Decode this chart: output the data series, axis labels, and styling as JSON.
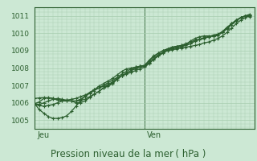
{
  "xlabel": "Pression niveau de la mer ( hPa )",
  "xlim": [
    0,
    48
  ],
  "ylim": [
    1004.5,
    1011.5
  ],
  "yticks": [
    1005,
    1006,
    1007,
    1008,
    1009,
    1010,
    1011
  ],
  "bg_color": "#cce8d4",
  "grid_color": "#a8cdb0",
  "line_color": "#2d6030",
  "vline_x": 24,
  "day_labels": [
    [
      "Jeu",
      0.5
    ],
    [
      "Ven",
      24.5
    ]
  ],
  "series": [
    [
      0,
      1005.9,
      1,
      1005.85,
      2,
      1005.8,
      3,
      1005.85,
      4,
      1005.9,
      5,
      1006.0,
      6,
      1006.1,
      7,
      1006.15,
      8,
      1006.2,
      9,
      1006.25,
      10,
      1006.35,
      11,
      1006.45,
      12,
      1006.55,
      13,
      1006.7,
      14,
      1006.85,
      15,
      1007.0,
      16,
      1007.15,
      17,
      1007.3,
      18,
      1007.45,
      19,
      1007.65,
      20,
      1007.8,
      21,
      1007.95,
      22,
      1008.05,
      23,
      1008.1,
      24,
      1008.15,
      25,
      1008.3,
      26,
      1008.5,
      27,
      1008.7,
      28,
      1008.85,
      29,
      1009.0,
      30,
      1009.05,
      31,
      1009.1,
      32,
      1009.15,
      33,
      1009.2,
      34,
      1009.25,
      35,
      1009.3,
      36,
      1009.35,
      37,
      1009.45,
      38,
      1009.5,
      39,
      1009.6,
      40,
      1009.7,
      41,
      1009.85,
      42,
      1010.05,
      43,
      1010.3,
      44,
      1010.55,
      45,
      1010.75,
      46,
      1010.9,
      47,
      1011.0
    ],
    [
      0,
      1006.25,
      1,
      1006.28,
      2,
      1006.3,
      3,
      1006.28,
      4,
      1006.25,
      5,
      1006.2,
      6,
      1006.15,
      7,
      1006.12,
      8,
      1006.1,
      9,
      1006.1,
      10,
      1006.15,
      11,
      1006.2,
      12,
      1006.35,
      13,
      1006.5,
      14,
      1006.65,
      15,
      1006.85,
      16,
      1007.0,
      17,
      1007.15,
      18,
      1007.35,
      19,
      1007.55,
      20,
      1007.7,
      21,
      1007.85,
      22,
      1007.95,
      23,
      1008.05,
      24,
      1008.1,
      25,
      1008.3,
      26,
      1008.55,
      27,
      1008.75,
      28,
      1008.9,
      29,
      1009.05,
      30,
      1009.15,
      31,
      1009.2,
      32,
      1009.25,
      33,
      1009.3,
      34,
      1009.4,
      35,
      1009.55,
      36,
      1009.65,
      37,
      1009.75,
      38,
      1009.8,
      39,
      1009.85,
      40,
      1009.9,
      41,
      1010.05,
      42,
      1010.3,
      43,
      1010.55,
      44,
      1010.75,
      45,
      1010.9,
      46,
      1011.0,
      47,
      1011.05
    ],
    [
      0,
      1005.95,
      1,
      1005.9,
      2,
      1006.0,
      3,
      1006.1,
      4,
      1006.2,
      5,
      1006.25,
      6,
      1006.2,
      7,
      1006.15,
      8,
      1006.1,
      9,
      1006.0,
      10,
      1006.0,
      11,
      1006.1,
      12,
      1006.3,
      13,
      1006.5,
      14,
      1006.65,
      15,
      1006.85,
      16,
      1006.95,
      17,
      1007.1,
      18,
      1007.35,
      19,
      1007.55,
      20,
      1007.7,
      21,
      1007.85,
      22,
      1008.0,
      23,
      1008.1,
      24,
      1008.15,
      25,
      1008.45,
      26,
      1008.7,
      27,
      1008.85,
      28,
      1009.0,
      29,
      1009.1,
      30,
      1009.2,
      31,
      1009.25,
      32,
      1009.3,
      33,
      1009.35,
      34,
      1009.4,
      35,
      1009.55,
      36,
      1009.65,
      37,
      1009.7,
      38,
      1009.8,
      39,
      1009.9,
      40,
      1009.95,
      41,
      1010.1,
      42,
      1010.35,
      43,
      1010.55,
      44,
      1010.75,
      45,
      1010.9,
      46,
      1011.0,
      47,
      1011.1
    ],
    [
      0,
      1005.95,
      1,
      1005.6,
      2,
      1005.4,
      3,
      1005.2,
      4,
      1005.1,
      5,
      1005.1,
      6,
      1005.15,
      7,
      1005.25,
      8,
      1005.5,
      9,
      1005.8,
      10,
      1006.1,
      11,
      1006.4,
      12,
      1006.6,
      13,
      1006.75,
      14,
      1006.85,
      15,
      1006.95,
      16,
      1007.05,
      17,
      1007.2,
      18,
      1007.4,
      19,
      1007.55,
      20,
      1007.65,
      21,
      1007.75,
      22,
      1007.85,
      23,
      1007.95,
      24,
      1008.05,
      25,
      1008.25,
      26,
      1008.5,
      27,
      1008.7,
      28,
      1008.9,
      29,
      1009.05,
      30,
      1009.1,
      31,
      1009.15,
      32,
      1009.2,
      33,
      1009.35,
      34,
      1009.55,
      35,
      1009.7,
      36,
      1009.8,
      37,
      1009.85,
      38,
      1009.85,
      39,
      1009.85,
      40,
      1009.9,
      41,
      1010.05,
      42,
      1010.25,
      43,
      1010.5,
      44,
      1010.7,
      45,
      1010.9,
      46,
      1011.0,
      47,
      1011.05
    ],
    [
      0,
      1005.95,
      1,
      1006.05,
      2,
      1006.25,
      3,
      1006.3,
      4,
      1006.25,
      5,
      1006.15,
      6,
      1006.1,
      7,
      1006.1,
      8,
      1006.1,
      9,
      1006.1,
      10,
      1006.2,
      11,
      1006.35,
      12,
      1006.55,
      13,
      1006.75,
      14,
      1006.95,
      15,
      1007.1,
      16,
      1007.25,
      17,
      1007.4,
      18,
      1007.6,
      19,
      1007.8,
      20,
      1007.95,
      21,
      1008.0,
      22,
      1008.05,
      23,
      1008.1,
      24,
      1008.15,
      25,
      1008.4,
      26,
      1008.65,
      27,
      1008.85,
      28,
      1009.0,
      29,
      1009.1,
      30,
      1009.2,
      31,
      1009.25,
      32,
      1009.3,
      33,
      1009.4,
      34,
      1009.5,
      35,
      1009.6,
      36,
      1009.65,
      37,
      1009.75,
      38,
      1009.8,
      39,
      1009.85,
      40,
      1009.9,
      41,
      1010.05,
      42,
      1010.3,
      43,
      1010.55,
      44,
      1010.75,
      45,
      1010.9,
      46,
      1011.0,
      47,
      1010.95
    ]
  ],
  "marker_size": 2.5,
  "line_width": 0.9,
  "tick_label_color": "#2d6030",
  "tick_label_size": 6.5,
  "xlabel_size": 8.5,
  "day_label_size": 7,
  "border_color": "#2d6030"
}
